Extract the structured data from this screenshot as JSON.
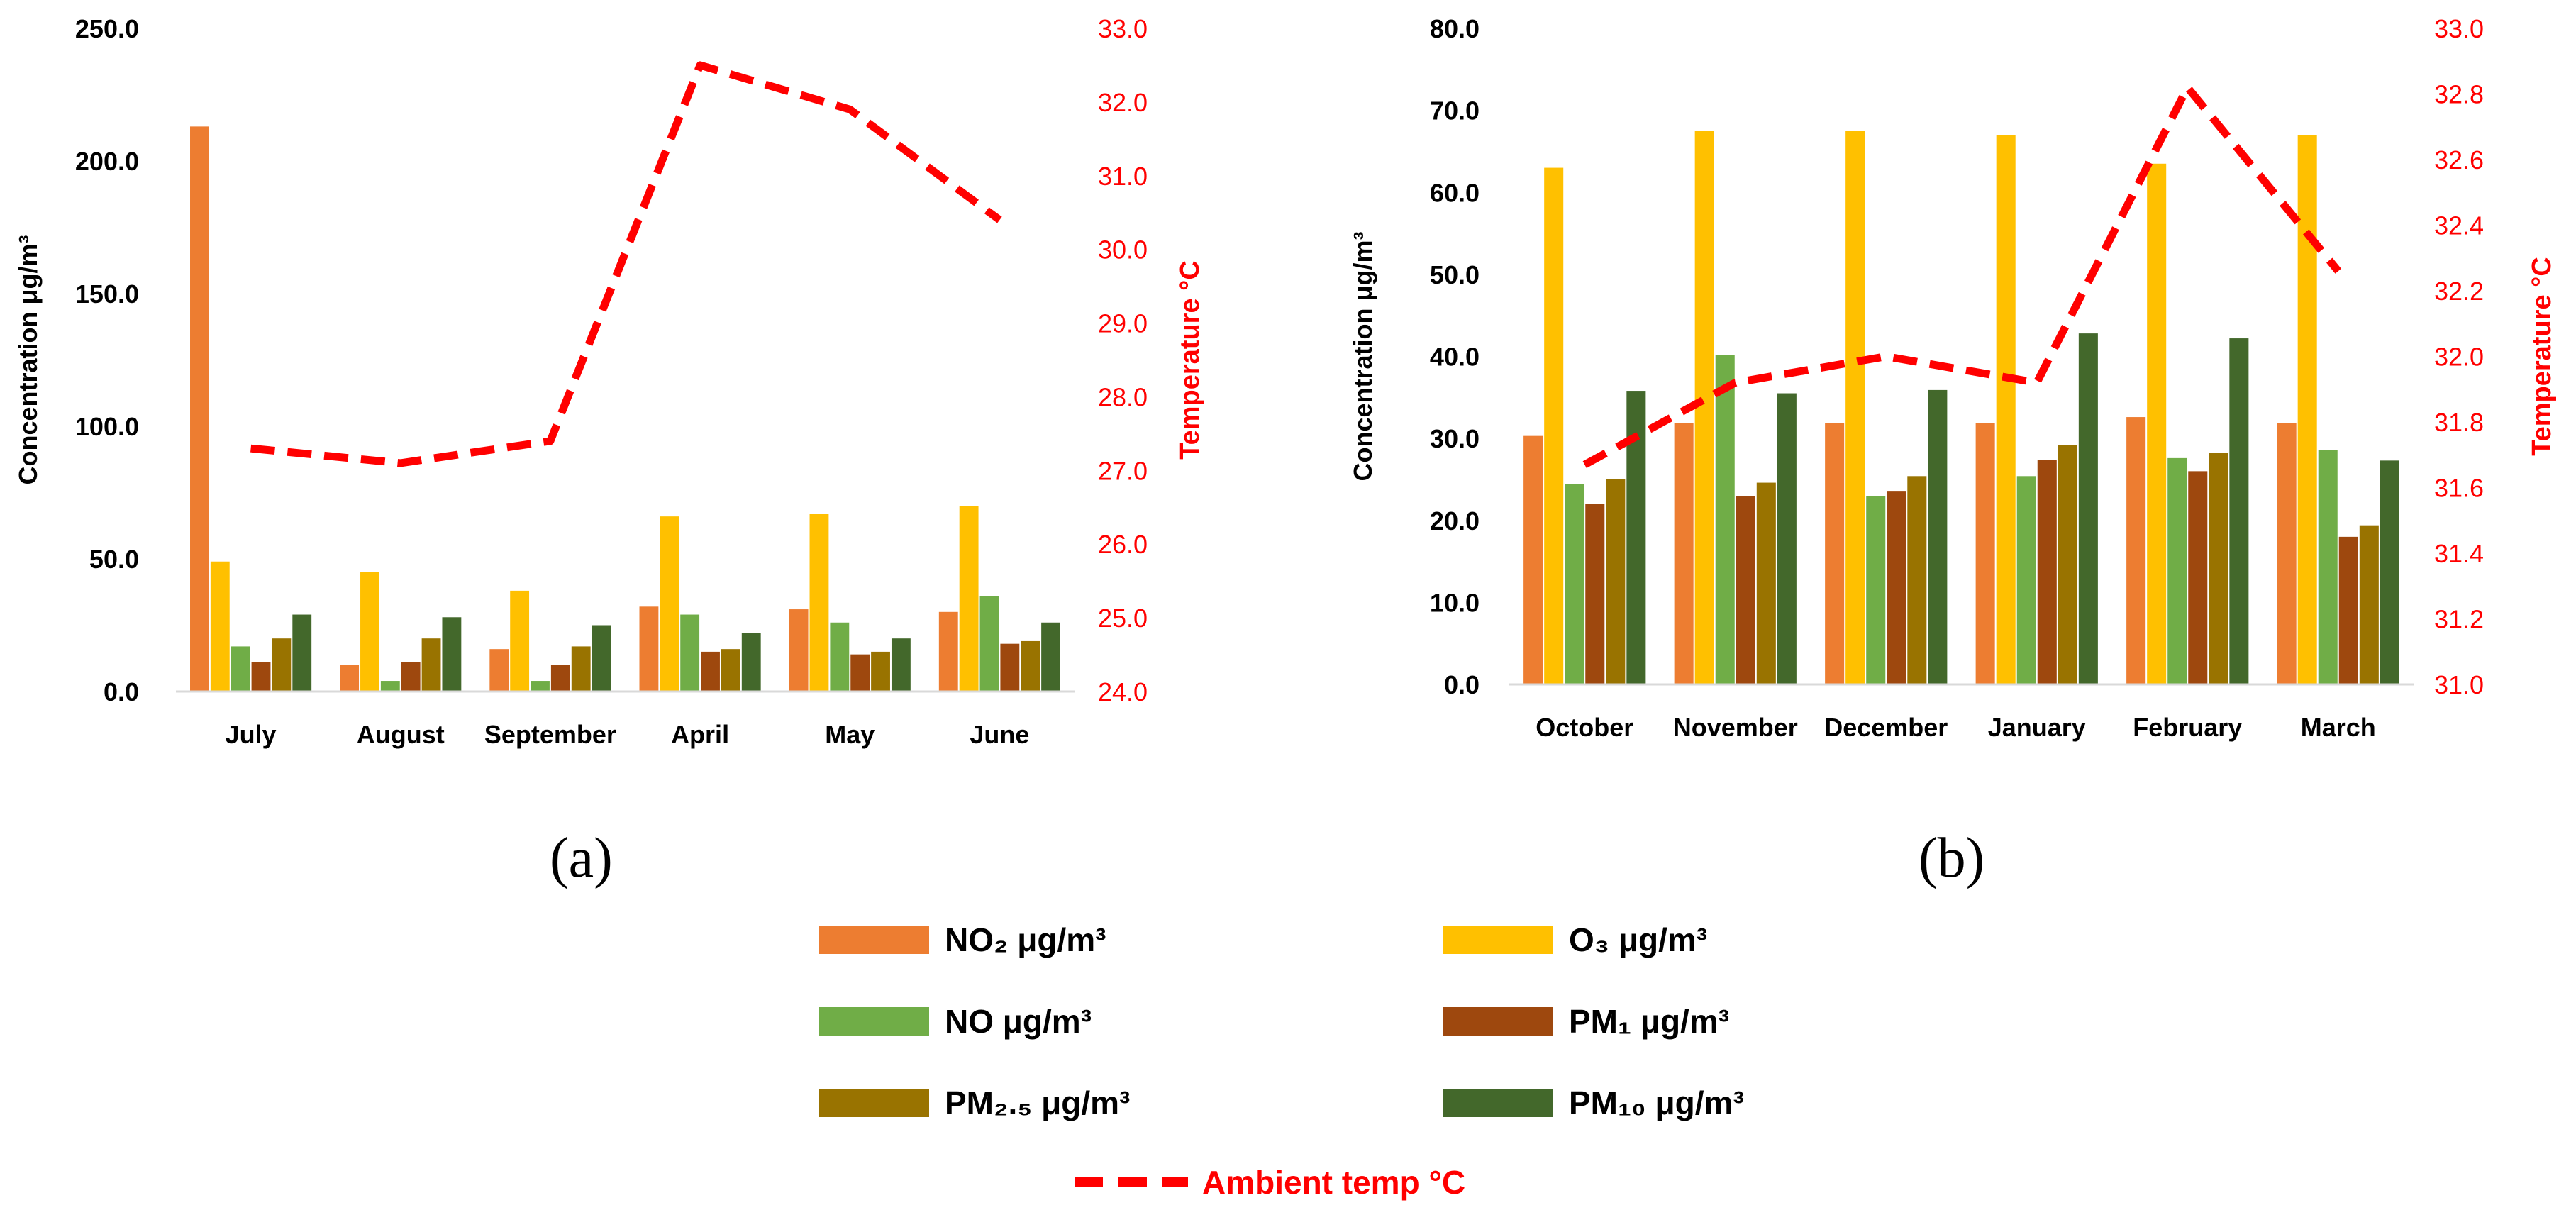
{
  "colors": {
    "NO2": "#ED7D31",
    "O3": "#FFC000",
    "NO": "#70AD47",
    "PM1": "#9E480E",
    "PM2_5": "#997300",
    "PM10": "#43682B",
    "temp": "#FF0000"
  },
  "chart_data": [
    {
      "type": "bar",
      "panel": "(a)",
      "categories": [
        "July",
        "August",
        "September",
        "April",
        "May",
        "June"
      ],
      "ylabel": "Concentration μg/m³",
      "ylim": [
        0,
        250
      ],
      "y_ticks": [
        "0.0",
        "50.0",
        "100.0",
        "150.0",
        "200.0",
        "250.0"
      ],
      "y2label": "Temperature °C",
      "y2lim": [
        24,
        33
      ],
      "y2_ticks": [
        "24.0",
        "25.0",
        "26.0",
        "27.0",
        "28.0",
        "29.0",
        "30.0",
        "31.0",
        "32.0",
        "33.0"
      ],
      "series": [
        {
          "name": "NO2",
          "values": [
            213,
            10,
            16,
            32,
            31,
            30
          ]
        },
        {
          "name": "O3",
          "values": [
            49,
            45,
            38,
            66,
            67,
            70
          ]
        },
        {
          "name": "NO",
          "values": [
            17,
            4,
            4,
            29,
            26,
            36
          ]
        },
        {
          "name": "PM1",
          "values": [
            11,
            11,
            10,
            15,
            14,
            18
          ]
        },
        {
          "name": "PM2_5",
          "values": [
            20,
            20,
            17,
            16,
            15,
            19
          ]
        },
        {
          "name": "PM10",
          "values": [
            29,
            28,
            25,
            22,
            20,
            26
          ]
        }
      ],
      "line": {
        "name": "Ambient temp °C",
        "values": [
          27.3,
          27.1,
          27.4,
          32.5,
          31.9,
          30.4
        ]
      }
    },
    {
      "type": "bar",
      "panel": "(b)",
      "categories": [
        "October",
        "November",
        "December",
        "January",
        "February",
        "March"
      ],
      "ylabel": "Concentration μg/m³",
      "ylim": [
        0,
        80
      ],
      "y_ticks": [
        "0.0",
        "10.0",
        "20.0",
        "30.0",
        "40.0",
        "50.0",
        "60.0",
        "70.0",
        "80.0"
      ],
      "y2label": "Temperature °C",
      "y2lim": [
        31.0,
        33.0
      ],
      "y2_ticks": [
        "31.0",
        "31.2",
        "31.4",
        "31.6",
        "31.8",
        "32.0",
        "32.2",
        "32.4",
        "32.6",
        "32.8",
        "33.0"
      ],
      "series": [
        {
          "name": "NO2",
          "values": [
            30.3,
            31.9,
            31.9,
            31.9,
            32.6,
            31.9
          ]
        },
        {
          "name": "O3",
          "values": [
            63.0,
            67.5,
            67.5,
            67.0,
            63.5,
            67.0
          ]
        },
        {
          "name": "NO",
          "values": [
            24.4,
            40.2,
            23.0,
            25.4,
            27.6,
            28.6
          ]
        },
        {
          "name": "PM1",
          "values": [
            22.0,
            23.0,
            23.6,
            27.4,
            26.0,
            18.0
          ]
        },
        {
          "name": "PM2_5",
          "values": [
            25.0,
            24.6,
            25.4,
            29.2,
            28.2,
            19.4
          ]
        },
        {
          "name": "PM10",
          "values": [
            35.8,
            35.5,
            35.9,
            42.8,
            42.2,
            27.3
          ]
        }
      ],
      "line": {
        "name": "Ambient temp °C",
        "values": [
          31.67,
          31.92,
          32.0,
          31.92,
          32.82,
          32.26
        ]
      }
    }
  ],
  "panel_labels": {
    "a": "(a)",
    "b": "(b)"
  },
  "legend": {
    "no2": "NO₂ μg/m³",
    "o3": "O₃ μg/m³",
    "no": "NO μg/m³",
    "pm1": "PM₁ μg/m³",
    "pm25": "PM₂.₅ μg/m³",
    "pm10": "PM₁₀ μg/m³",
    "temp": "Ambient temp °C"
  }
}
